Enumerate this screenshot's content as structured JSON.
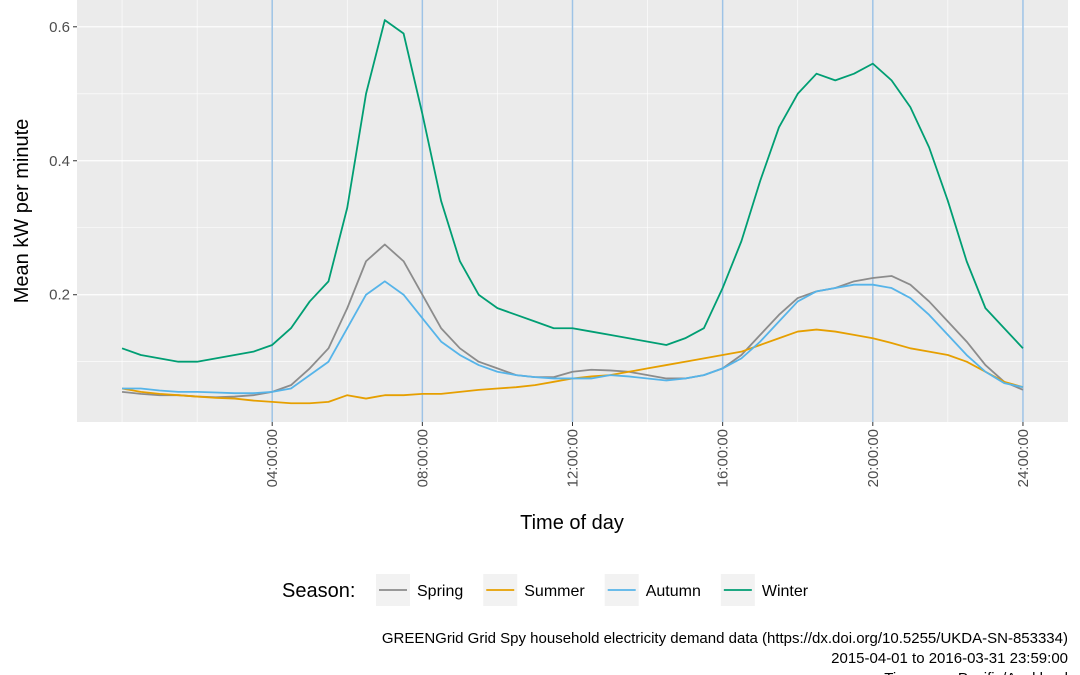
{
  "chart_data": {
    "type": "line",
    "x_label": "Time of day",
    "y_label": "Mean kW per minute",
    "x": [
      0,
      0.5,
      1,
      1.5,
      2,
      2.5,
      3,
      3.5,
      4,
      4.5,
      5,
      5.5,
      6,
      6.5,
      7,
      7.5,
      8,
      8.5,
      9,
      9.5,
      10,
      10.5,
      11,
      11.5,
      12,
      12.5,
      13,
      13.5,
      14,
      14.5,
      15,
      15.5,
      16,
      16.5,
      17,
      17.5,
      18,
      18.5,
      19,
      19.5,
      20,
      20.5,
      21,
      21.5,
      22,
      22.5,
      23,
      23.5,
      24
    ],
    "series": [
      {
        "name": "Spring",
        "color": "#8c8c8c",
        "values": [
          0.055,
          0.052,
          0.05,
          0.05,
          0.048,
          0.047,
          0.048,
          0.05,
          0.055,
          0.065,
          0.09,
          0.12,
          0.18,
          0.25,
          0.275,
          0.25,
          0.2,
          0.15,
          0.12,
          0.1,
          0.09,
          0.08,
          0.077,
          0.077,
          0.085,
          0.088,
          0.087,
          0.085,
          0.08,
          0.075,
          0.075,
          0.08,
          0.09,
          0.11,
          0.14,
          0.17,
          0.195,
          0.205,
          0.21,
          0.22,
          0.225,
          0.228,
          0.215,
          0.19,
          0.16,
          0.13,
          0.095,
          0.07,
          0.058
        ]
      },
      {
        "name": "Summer",
        "color": "#E69F00",
        "values": [
          0.06,
          0.055,
          0.052,
          0.05,
          0.048,
          0.046,
          0.045,
          0.042,
          0.04,
          0.038,
          0.038,
          0.04,
          0.05,
          0.045,
          0.05,
          0.05,
          0.052,
          0.052,
          0.055,
          0.058,
          0.06,
          0.062,
          0.065,
          0.07,
          0.075,
          0.078,
          0.08,
          0.085,
          0.09,
          0.095,
          0.1,
          0.105,
          0.11,
          0.115,
          0.125,
          0.135,
          0.145,
          0.148,
          0.145,
          0.14,
          0.135,
          0.128,
          0.12,
          0.115,
          0.11,
          0.1,
          0.085,
          0.07,
          0.062
        ]
      },
      {
        "name": "Autumn",
        "color": "#56B4E9",
        "values": [
          0.06,
          0.06,
          0.057,
          0.055,
          0.055,
          0.054,
          0.053,
          0.053,
          0.055,
          0.06,
          0.08,
          0.1,
          0.15,
          0.2,
          0.22,
          0.2,
          0.165,
          0.13,
          0.11,
          0.095,
          0.085,
          0.08,
          0.077,
          0.075,
          0.075,
          0.075,
          0.08,
          0.078,
          0.075,
          0.072,
          0.075,
          0.08,
          0.09,
          0.105,
          0.13,
          0.16,
          0.19,
          0.205,
          0.21,
          0.215,
          0.215,
          0.21,
          0.195,
          0.17,
          0.14,
          0.11,
          0.085,
          0.068,
          0.062
        ]
      },
      {
        "name": "Winter",
        "color": "#009E73",
        "values": [
          0.12,
          0.11,
          0.105,
          0.1,
          0.1,
          0.105,
          0.11,
          0.115,
          0.125,
          0.15,
          0.19,
          0.22,
          0.33,
          0.5,
          0.61,
          0.59,
          0.47,
          0.34,
          0.25,
          0.2,
          0.18,
          0.17,
          0.16,
          0.15,
          0.15,
          0.145,
          0.14,
          0.135,
          0.13,
          0.125,
          0.135,
          0.15,
          0.21,
          0.28,
          0.37,
          0.45,
          0.5,
          0.53,
          0.52,
          0.53,
          0.545,
          0.52,
          0.48,
          0.42,
          0.34,
          0.25,
          0.18,
          0.15,
          0.12
        ]
      }
    ],
    "xlim": [
      -1.2,
      25.2
    ],
    "ylim": [
      0.01,
      0.64
    ],
    "xticks": [
      {
        "value": 4,
        "label": "04:00:00"
      },
      {
        "value": 8,
        "label": "08:00:00"
      },
      {
        "value": 12,
        "label": "12:00:00"
      },
      {
        "value": 16,
        "label": "16:00:00"
      },
      {
        "value": 20,
        "label": "20:00:00"
      },
      {
        "value": 24,
        "label": "24:00:00"
      }
    ],
    "yticks": [
      0.2,
      0.4,
      0.6
    ],
    "xminor": [
      0,
      2,
      6,
      10,
      14,
      18,
      22
    ],
    "yminor": [
      0.1,
      0.3,
      0.5
    ],
    "grid": true,
    "vline_color": "#9ec3e6",
    "legend_title": "Season:",
    "legend_position": "bottom",
    "caption": [
      "GREENGrid Grid Spy household electricity demand data (https://dx.doi.org/10.5255/UKDA-SN-853334)",
      "2015-04-01 to 2016-03-31 23:59:00",
      "Timezone: Pacific/Auckland"
    ]
  }
}
